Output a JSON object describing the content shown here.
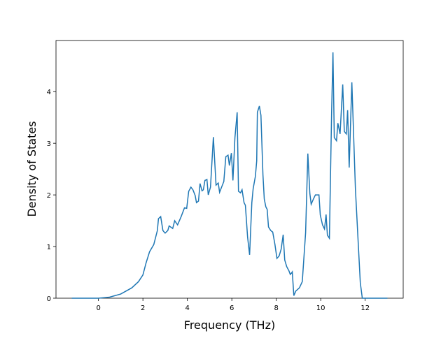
{
  "chart_data": {
    "type": "line",
    "xlabel": "Frequency (THz)",
    "ylabel": "Density of States",
    "xlim": [
      -1.91,
      13.71
    ],
    "ylim": [
      0,
      4.99
    ],
    "xticks": [
      0,
      2,
      4,
      6,
      8,
      10,
      12
    ],
    "yticks": [
      0,
      1,
      2,
      3,
      4
    ],
    "grid": false,
    "series": [
      {
        "color": "#1f77b4",
        "x": [
          -1.2,
          0,
          0.5,
          1.0,
          1.5,
          1.8,
          2.0,
          2.14,
          2.3,
          2.49,
          2.65,
          2.7,
          2.8,
          2.9,
          3.0,
          3.12,
          3.18,
          3.34,
          3.43,
          3.56,
          3.72,
          3.87,
          3.97,
          4.06,
          4.16,
          4.25,
          4.35,
          4.41,
          4.5,
          4.57,
          4.66,
          4.72,
          4.79,
          4.88,
          4.94,
          5.04,
          5.17,
          5.29,
          5.39,
          5.45,
          5.54,
          5.64,
          5.73,
          5.83,
          5.89,
          5.98,
          6.05,
          6.14,
          6.24,
          6.3,
          6.39,
          6.46,
          6.55,
          6.61,
          6.71,
          6.8,
          6.9,
          6.96,
          7.06,
          7.12,
          7.15,
          7.24,
          7.31,
          7.4,
          7.46,
          7.53,
          7.59,
          7.65,
          7.75,
          7.84,
          7.94,
          8.03,
          8.13,
          8.22,
          8.31,
          8.38,
          8.47,
          8.57,
          8.63,
          8.69,
          8.72,
          8.79,
          8.88,
          9.04,
          9.17,
          9.23,
          9.32,
          9.42,
          9.51,
          9.57,
          9.67,
          9.76,
          9.92,
          9.98,
          10.08,
          10.17,
          10.24,
          10.3,
          10.39,
          10.49,
          10.55,
          10.61,
          10.71,
          10.77,
          10.87,
          10.99,
          11.06,
          11.15,
          11.21,
          11.28,
          11.4,
          11.46,
          11.56,
          11.69,
          11.78,
          11.87,
          13.0
        ],
        "values": [
          0,
          0,
          0.02,
          0.08,
          0.2,
          0.32,
          0.45,
          0.68,
          0.9,
          1.04,
          1.31,
          1.54,
          1.58,
          1.31,
          1.26,
          1.31,
          1.4,
          1.35,
          1.5,
          1.42,
          1.58,
          1.75,
          1.74,
          2.07,
          2.15,
          2.1,
          1.99,
          1.85,
          1.88,
          2.22,
          2.08,
          2.1,
          2.28,
          2.3,
          2.0,
          2.15,
          3.12,
          2.19,
          2.23,
          2.05,
          2.15,
          2.26,
          2.74,
          2.77,
          2.57,
          2.81,
          2.28,
          3.11,
          3.6,
          2.07,
          2.04,
          2.1,
          1.85,
          1.8,
          1.18,
          0.84,
          1.85,
          2.12,
          2.36,
          2.66,
          3.6,
          3.72,
          3.54,
          2.39,
          1.92,
          1.77,
          1.72,
          1.38,
          1.31,
          1.28,
          1.04,
          0.77,
          0.82,
          0.95,
          1.23,
          0.74,
          0.61,
          0.53,
          0.46,
          0.49,
          0.51,
          0.05,
          0.14,
          0.2,
          0.32,
          0.7,
          1.27,
          2.8,
          2.03,
          1.82,
          1.92,
          2.0,
          2.0,
          1.61,
          1.42,
          1.34,
          1.62,
          1.22,
          1.16,
          3.6,
          4.76,
          3.11,
          3.05,
          3.39,
          3.18,
          4.14,
          3.23,
          3.18,
          3.64,
          2.53,
          4.18,
          3.41,
          2.12,
          1.04,
          0.3,
          0,
          0
        ]
      }
    ]
  }
}
